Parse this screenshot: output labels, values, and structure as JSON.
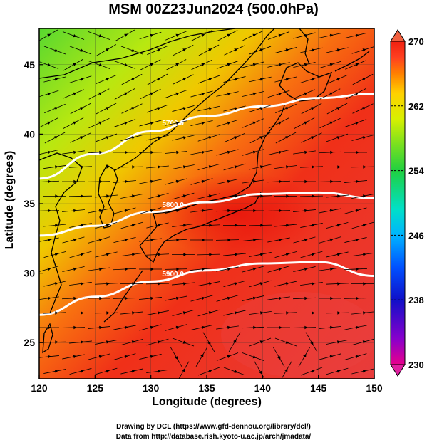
{
  "title": "MSM 00Z23Jun2024 (500.0hPa)",
  "map": {
    "xlabel": "Longitude (degrees)",
    "ylabel": "Latitude  (degrees)",
    "lon_range": [
      120,
      150
    ],
    "lat_range": [
      22.4,
      47.6
    ],
    "lon_ticks": [
      "120",
      "125",
      "130",
      "135",
      "140",
      "145",
      "150"
    ],
    "lat_ticks": [
      "25",
      "30",
      "35",
      "40",
      "45"
    ],
    "contours": [
      {
        "label": "5700.0",
        "lat": [
          36.8,
          38.6,
          40.2,
          41.3,
          42.0,
          42.6,
          42.9
        ]
      },
      {
        "label": "5800.0",
        "lat": [
          32.7,
          33.4,
          34.4,
          35.1,
          35.7,
          35.8,
          35.4
        ]
      },
      {
        "label": "5900.0",
        "lat": [
          27.0,
          28.3,
          29.4,
          30.2,
          30.7,
          30.8,
          29.8
        ]
      }
    ]
  },
  "colorbar": {
    "ticks": [
      "270",
      "262",
      "254",
      "246",
      "238",
      "230"
    ],
    "min": 230,
    "max": 270,
    "colors": [
      "#e8008c",
      "#8800cc",
      "#1010c8",
      "#0050ff",
      "#00b4ff",
      "#00e0c8",
      "#20d040",
      "#78e020",
      "#d8f000",
      "#ffd000",
      "#ff8000",
      "#ff4020",
      "#f02010"
    ]
  },
  "credits": {
    "line1": "Drawing by DCL (https://www.gfd-dennou.org/library/dcl/)",
    "line2": "Data from http://database.rish.kyoto-u.ac.jp/arch/jmadata/"
  }
}
